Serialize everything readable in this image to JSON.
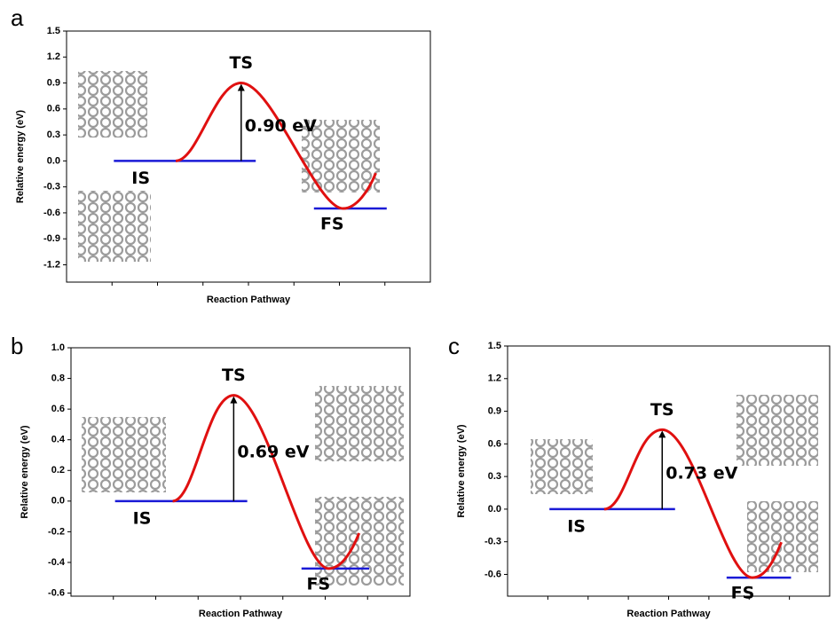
{
  "chart_data": [
    {
      "type": "energy-profile",
      "panel": "a",
      "ylabel": "Relative energy (eV)",
      "xlabel": "Reaction Pathway",
      "categories": [
        "IS",
        "TS",
        "FS"
      ],
      "values": [
        0,
        0.9,
        -0.55
      ],
      "barrier_label": "0.90 eV",
      "level_color": "#1a1ad6",
      "curve_color": "#e01010",
      "ylim": [
        -1.4,
        1.5
      ],
      "yticks": [
        -1.2,
        -0.9,
        -0.6,
        -0.3,
        {
          "value": 0,
          "label": "0.0"
        },
        0.3,
        0.6,
        0.9,
        1.2,
        1.5
      ]
    },
    {
      "type": "energy-profile",
      "panel": "b",
      "ylabel": "Relative energy (eV)",
      "xlabel": "Reaction Pathway",
      "categories": [
        "IS",
        "TS",
        "FS"
      ],
      "values": [
        0,
        0.69,
        -0.44
      ],
      "barrier_label": "0.69 eV",
      "level_color": "#1a1ad6",
      "curve_color": "#e01010",
      "ylim": [
        -0.62,
        1.0
      ],
      "yticks": [
        -0.6,
        -0.4,
        -0.2,
        {
          "value": 0,
          "label": "0.0"
        },
        0.2,
        0.4,
        0.6,
        0.8,
        {
          "value": 1,
          "label": "1.0"
        }
      ]
    },
    {
      "type": "energy-profile",
      "panel": "c",
      "ylabel": "Relative energy (eV)",
      "xlabel": "Reaction Pathway",
      "categories": [
        "IS",
        "TS",
        "FS"
      ],
      "values": [
        0,
        0.73,
        -0.63
      ],
      "barrier_label": "0.73 eV",
      "level_color": "#1a1ad6",
      "curve_color": "#e01010",
      "ylim": [
        -0.8,
        1.5
      ],
      "yticks": [
        -0.6,
        -0.3,
        {
          "value": 0,
          "label": "0.0"
        },
        0.3,
        0.6,
        0.9,
        1.2,
        1.5
      ]
    }
  ]
}
